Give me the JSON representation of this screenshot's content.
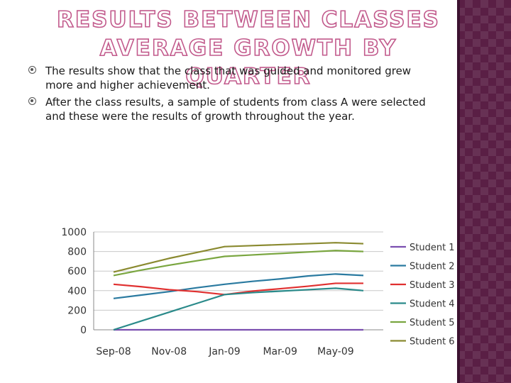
{
  "slide": {
    "title_line1": "RESULTS BETWEEN CLASSES",
    "title_line2": "AVERAGE GROWTH BY QUARTER",
    "bullets": [
      "The results show that the class that was guided and monitored grew more and higher achievement.",
      "After the class results, a sample of students from class A were selected and these were the results of growth throughout the year."
    ],
    "accent_color": "#c25a8c",
    "side_band_color": "#5a1f45"
  },
  "chart_data": {
    "type": "line",
    "title": "",
    "xlabel": "",
    "ylabel": "",
    "x_tick_labels": [
      "Sep-08",
      "Nov-08",
      "Jan-09",
      "Mar-09",
      "May-09"
    ],
    "x": [
      "Sep-08",
      "Oct-08",
      "Nov-08",
      "Dec-08",
      "Jan-09",
      "Feb-09",
      "Mar-09",
      "Apr-09",
      "May-09",
      "Jun-09"
    ],
    "ylim": [
      0,
      1000
    ],
    "y_ticks": [
      0,
      200,
      400,
      600,
      800,
      1000
    ],
    "grid": true,
    "legend_position": "right",
    "series": [
      {
        "name": "Student 1",
        "color": "#7b4fb0",
        "values": [
          0,
          0,
          0,
          0,
          0,
          0,
          0,
          0,
          0,
          0
        ]
      },
      {
        "name": "Student 2",
        "color": "#2a7aa0",
        "values": [
          320,
          355,
          390,
          430,
          465,
          495,
          520,
          550,
          570,
          555
        ]
      },
      {
        "name": "Student 3",
        "color": "#e03030",
        "values": [
          465,
          440,
          410,
          390,
          360,
          395,
          420,
          445,
          475,
          475
        ]
      },
      {
        "name": "Student 4",
        "color": "#2a8a8a",
        "values": [
          0,
          90,
          180,
          270,
          360,
          380,
          395,
          410,
          425,
          400
        ]
      },
      {
        "name": "Student 5",
        "color": "#7aa640",
        "values": [
          555,
          610,
          660,
          705,
          750,
          765,
          780,
          795,
          810,
          800
        ]
      },
      {
        "name": "Student 6",
        "color": "#8a8a30",
        "values": [
          590,
          660,
          730,
          790,
          850,
          860,
          870,
          880,
          890,
          880
        ]
      }
    ]
  }
}
